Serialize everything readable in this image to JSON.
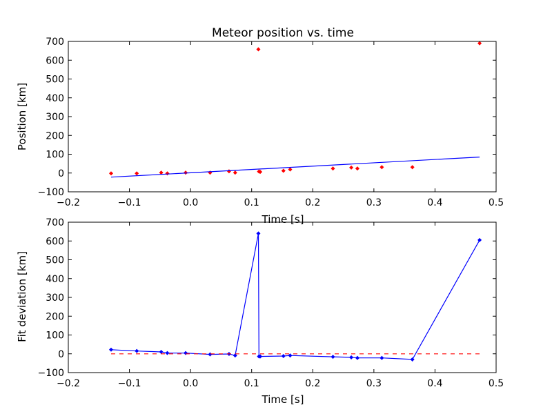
{
  "chart_data": [
    {
      "type": "scatter",
      "title": "Meteor position vs. time",
      "xlabel": "Time [s]",
      "ylabel": "Position [km]",
      "xlim": [
        -0.2,
        0.5
      ],
      "ylim": [
        -100,
        700
      ],
      "xticks": [
        -0.2,
        -0.1,
        0.0,
        0.1,
        0.2,
        0.3,
        0.4,
        0.5
      ],
      "xtick_labels": [
        "−0.2",
        "−0.1",
        "0.0",
        "0.1",
        "0.2",
        "0.3",
        "0.4",
        "0.5"
      ],
      "yticks": [
        -100,
        0,
        100,
        200,
        300,
        400,
        500,
        600,
        700
      ],
      "ytick_labels": [
        "−100",
        "0",
        "100",
        "200",
        "300",
        "400",
        "500",
        "600",
        "700"
      ],
      "grid": false,
      "series": [
        {
          "style": "markers",
          "color": "#ff0000",
          "x": [
            -0.13,
            -0.088,
            -0.048,
            -0.038,
            -0.008,
            0.032,
            0.063,
            0.073,
            0.111,
            0.112,
            0.114,
            0.152,
            0.163,
            0.233,
            0.263,
            0.273,
            0.313,
            0.363,
            0.473
          ],
          "y": [
            -2,
            -2,
            2,
            -2,
            2,
            2,
            9,
            2,
            658,
            8,
            6,
            12,
            19,
            24,
            29,
            24,
            31,
            31,
            690
          ]
        },
        {
          "style": "line",
          "color": "#0000ff",
          "x": [
            -0.13,
            0.473
          ],
          "y": [
            -22,
            85
          ]
        }
      ]
    },
    {
      "type": "line",
      "title": "",
      "xlabel": "Time [s]",
      "ylabel": "Fit deviation [km]",
      "xlim": [
        -0.2,
        0.5
      ],
      "ylim": [
        -100,
        700
      ],
      "xticks": [
        -0.2,
        -0.1,
        0.0,
        0.1,
        0.2,
        0.3,
        0.4,
        0.5
      ],
      "xtick_labels": [
        "−0.2",
        "−0.1",
        "0.0",
        "0.1",
        "0.2",
        "0.3",
        "0.4",
        "0.5"
      ],
      "yticks": [
        -100,
        0,
        100,
        200,
        300,
        400,
        500,
        600,
        700
      ],
      "ytick_labels": [
        "−100",
        "0",
        "100",
        "200",
        "300",
        "400",
        "500",
        "600",
        "700"
      ],
      "grid": false,
      "series": [
        {
          "style": "line-markers",
          "color": "#0000ff",
          "x": [
            -0.13,
            -0.088,
            -0.048,
            -0.038,
            -0.008,
            0.032,
            0.063,
            0.073,
            0.111,
            0.112,
            0.114,
            0.152,
            0.163,
            0.233,
            0.263,
            0.273,
            0.313,
            0.363,
            0.473
          ],
          "y": [
            22,
            15,
            10,
            4,
            4,
            -3,
            -1,
            -9,
            640,
            -14,
            -14,
            -12,
            -9,
            -16,
            -19,
            -22,
            -22,
            -30,
            605
          ]
        },
        {
          "style": "dashed",
          "color": "#ff0000",
          "x": [
            -0.13,
            0.473
          ],
          "y": [
            0,
            0
          ]
        }
      ]
    }
  ]
}
